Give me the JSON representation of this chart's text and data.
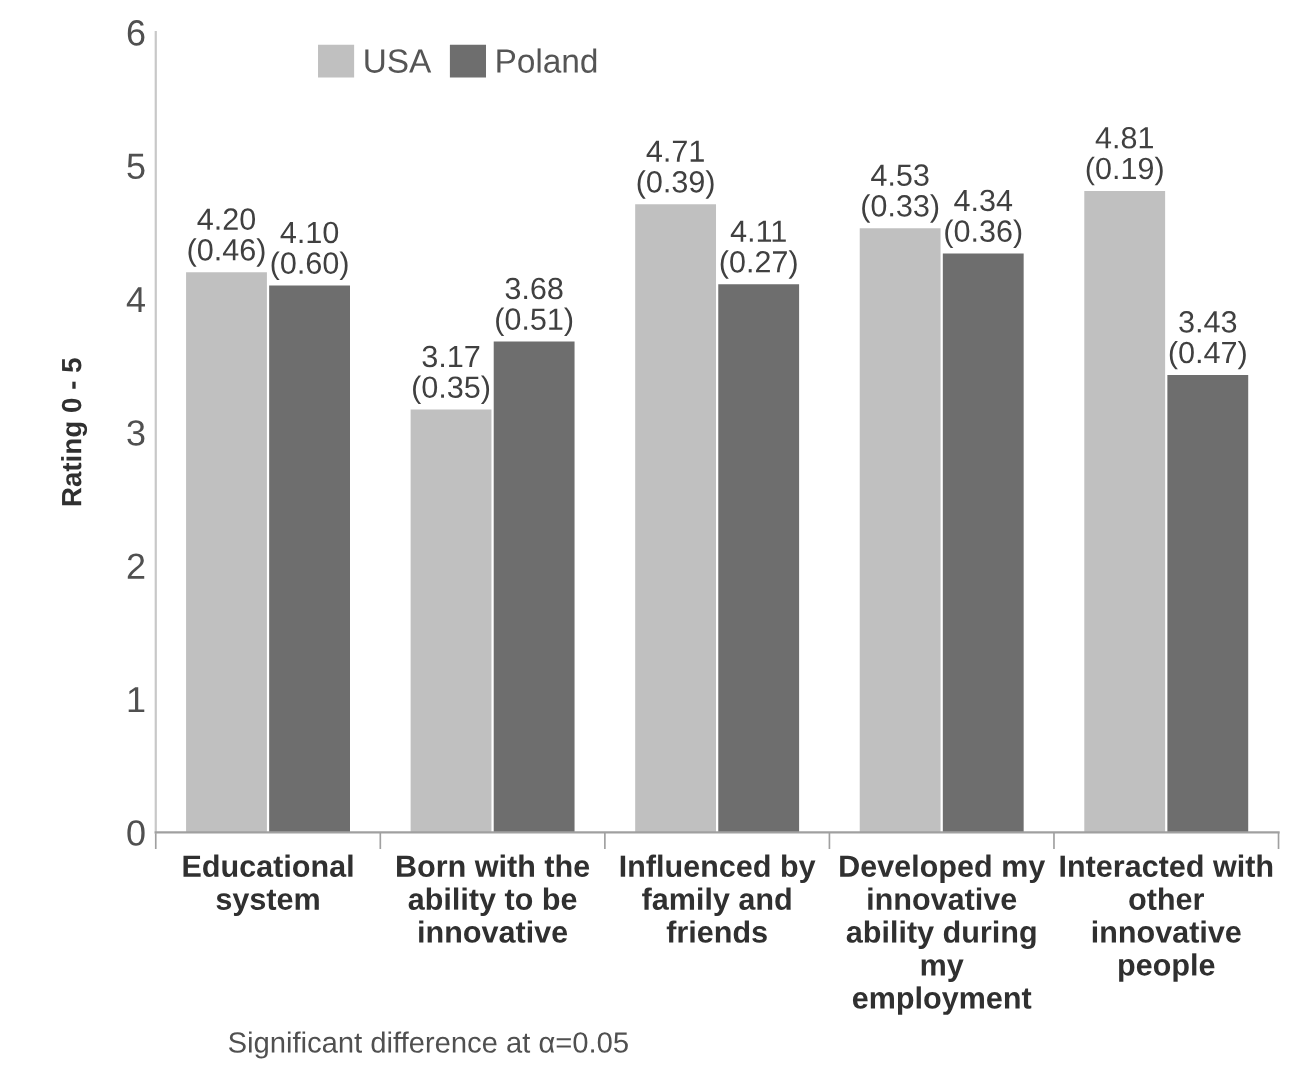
{
  "chart_data": {
    "type": "bar",
    "categories": [
      "Educational\nsystem",
      "Born with the\nability to be\ninnovative",
      "Influenced by\nfamily and\nfriends",
      "Developed my\ninnovative\nability during\nmy\nemployment",
      "Interacted with\nother\ninnovative\npeople"
    ],
    "series": [
      {
        "name": "USA",
        "color": "#c0c0c0",
        "values": [
          4.2,
          3.17,
          4.71,
          4.53,
          4.81
        ],
        "value_labels": [
          "4.20\n(0.46)",
          "3.17\n(0.35)",
          "4.71\n(0.39)",
          "4.53\n(0.33)",
          "4.81\n(0.19)"
        ]
      },
      {
        "name": "Poland",
        "color": "#6e6e6e",
        "values": [
          4.1,
          3.68,
          4.11,
          4.34,
          3.43
        ],
        "value_labels": [
          "4.10\n(0.60)",
          "3.68\n(0.51)",
          "4.11\n(0.27)",
          "4.34\n(0.36)",
          "3.43\n(0.47)"
        ]
      }
    ],
    "ylabel": "Rating 0 - 5",
    "ylim": [
      0,
      6
    ],
    "yticks": [
      0,
      1,
      2,
      3,
      4,
      5,
      6
    ],
    "legend": "top",
    "grid": false,
    "annotations": [
      "Significant difference at α=0.05"
    ]
  }
}
